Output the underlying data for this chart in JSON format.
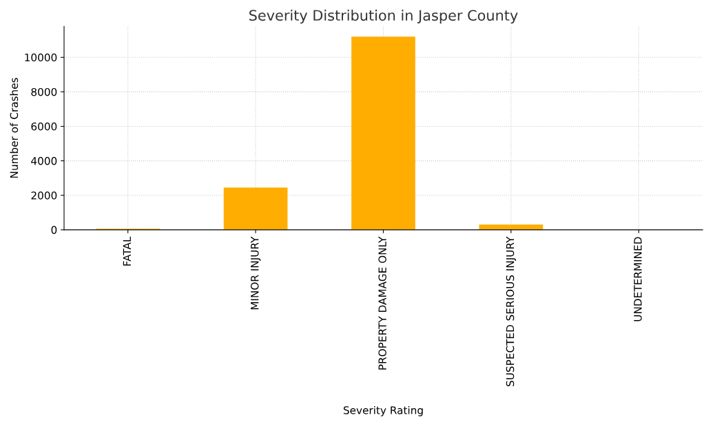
{
  "chart_data": {
    "type": "bar",
    "title": "Severity Distribution in Jasper County",
    "xlabel": "Severity Rating",
    "ylabel": "Number of Crashes",
    "categories": [
      "FATAL",
      "MINOR INJURY",
      "PROPERTY DAMAGE ONLY",
      "SUSPECTED SERIOUS INJURY",
      "UNDETERMINED"
    ],
    "values": [
      60,
      2450,
      11200,
      300,
      0
    ],
    "color": "#ffad00",
    "ylim": [
      0,
      11800
    ],
    "yticks": [
      0,
      2000,
      4000,
      6000,
      8000,
      10000
    ],
    "grid": true
  }
}
